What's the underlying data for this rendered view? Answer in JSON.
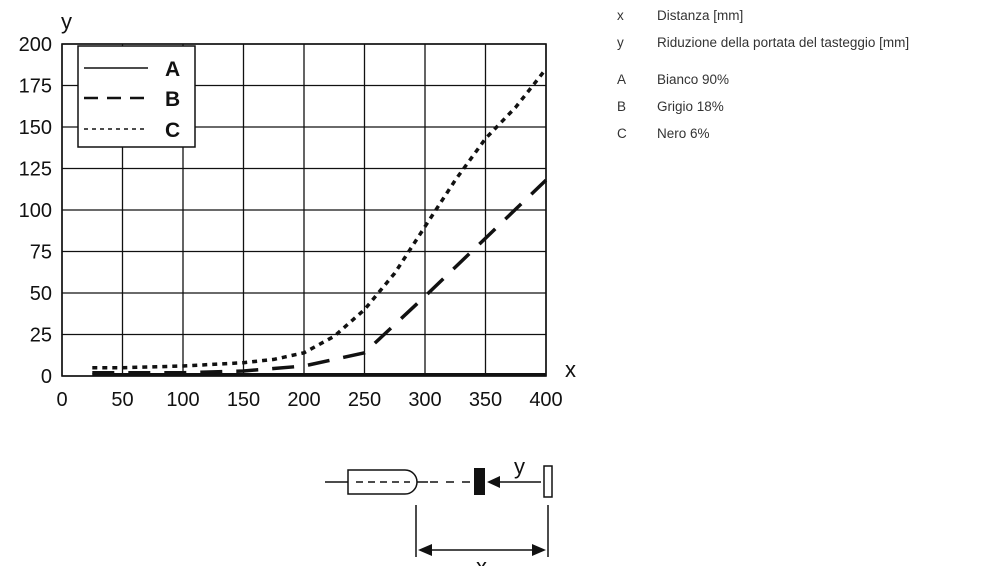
{
  "chart_data": {
    "type": "line",
    "xlabel": "x",
    "ylabel": "y",
    "xlim": [
      0,
      400
    ],
    "ylim": [
      0,
      200
    ],
    "xticks": [
      "0",
      "50",
      "100",
      "150",
      "200",
      "250",
      "300",
      "350",
      "400"
    ],
    "yticks": [
      "0",
      "25",
      "50",
      "75",
      "100",
      "125",
      "150",
      "175",
      "200"
    ],
    "grid": true,
    "legend": "top-left",
    "series": [
      {
        "name": "A",
        "style": "solid",
        "x": [
          25,
          50,
          100,
          150,
          200,
          250,
          300,
          350,
          400
        ],
        "y": [
          1,
          1,
          1,
          1,
          1,
          1,
          1,
          1,
          1
        ]
      },
      {
        "name": "B",
        "style": "dashed",
        "x": [
          25,
          50,
          100,
          150,
          200,
          250,
          300,
          350,
          400
        ],
        "y": [
          2,
          2,
          2,
          3,
          6,
          14,
          48,
          83,
          118
        ]
      },
      {
        "name": "C",
        "style": "dotted",
        "x": [
          25,
          50,
          100,
          150,
          175,
          200,
          225,
          250,
          275,
          300,
          325,
          350,
          375,
          400
        ],
        "y": [
          5,
          5,
          6,
          8,
          10,
          14,
          24,
          40,
          62,
          90,
          118,
          143,
          162,
          185
        ]
      }
    ]
  },
  "side_legend": [
    {
      "key": "x",
      "text": "Distanza [mm]"
    },
    {
      "key": "y",
      "text": "Riduzione della portata del tasteggio [mm]"
    },
    {
      "key": "A",
      "text": "Bianco 90%"
    },
    {
      "key": "B",
      "text": "Grigio 18%"
    },
    {
      "key": "C",
      "text": "Nero 6%"
    }
  ],
  "diagram": {
    "y_label": "y",
    "x_label": "x"
  }
}
